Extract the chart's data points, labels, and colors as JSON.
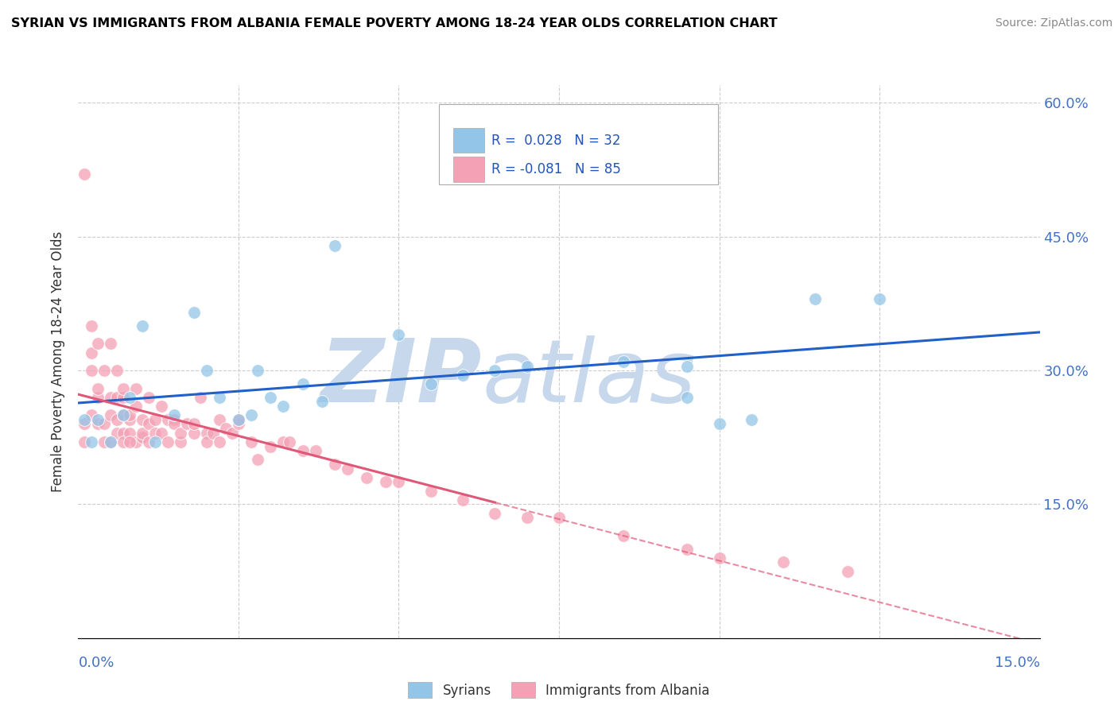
{
  "title": "SYRIAN VS IMMIGRANTS FROM ALBANIA FEMALE POVERTY AMONG 18-24 YEAR OLDS CORRELATION CHART",
  "source": "Source: ZipAtlas.com",
  "ylabel": "Female Poverty Among 18-24 Year Olds",
  "y_ticks": [
    0.0,
    0.15,
    0.3,
    0.45,
    0.6
  ],
  "y_tick_labels": [
    "",
    "15.0%",
    "30.0%",
    "45.0%",
    "60.0%"
  ],
  "syrians_R": 0.028,
  "syrians_N": 32,
  "albania_R": -0.081,
  "albania_N": 85,
  "legend_label_syrians": "Syrians",
  "legend_label_albania": "Immigrants from Albania",
  "color_syrians": "#92C5E8",
  "color_albania": "#F4A0B5",
  "color_trendline_syrians": "#2060C8",
  "color_trendline_albania": "#E05878",
  "watermark_color": "#C8D8EC",
  "syrians_x": [
    0.001,
    0.002,
    0.003,
    0.005,
    0.007,
    0.008,
    0.01,
    0.012,
    0.015,
    0.018,
    0.02,
    0.022,
    0.025,
    0.027,
    0.028,
    0.03,
    0.032,
    0.035,
    0.038,
    0.04,
    0.05,
    0.055,
    0.06,
    0.065,
    0.07,
    0.085,
    0.095,
    0.1,
    0.105,
    0.115,
    0.125,
    0.095
  ],
  "syrians_y": [
    0.245,
    0.22,
    0.245,
    0.22,
    0.25,
    0.27,
    0.35,
    0.22,
    0.25,
    0.365,
    0.3,
    0.27,
    0.245,
    0.25,
    0.3,
    0.27,
    0.26,
    0.285,
    0.265,
    0.44,
    0.34,
    0.285,
    0.295,
    0.3,
    0.305,
    0.31,
    0.305,
    0.24,
    0.245,
    0.38,
    0.38,
    0.27
  ],
  "albania_x": [
    0.001,
    0.001,
    0.002,
    0.002,
    0.003,
    0.003,
    0.003,
    0.004,
    0.004,
    0.005,
    0.005,
    0.005,
    0.006,
    0.006,
    0.006,
    0.007,
    0.007,
    0.007,
    0.007,
    0.008,
    0.008,
    0.008,
    0.009,
    0.009,
    0.009,
    0.01,
    0.01,
    0.01,
    0.011,
    0.011,
    0.011,
    0.012,
    0.012,
    0.013,
    0.013,
    0.014,
    0.014,
    0.015,
    0.015,
    0.016,
    0.016,
    0.017,
    0.018,
    0.018,
    0.019,
    0.02,
    0.02,
    0.021,
    0.022,
    0.022,
    0.023,
    0.024,
    0.025,
    0.025,
    0.027,
    0.028,
    0.03,
    0.032,
    0.033,
    0.035,
    0.037,
    0.04,
    0.042,
    0.045,
    0.048,
    0.05,
    0.055,
    0.06,
    0.065,
    0.07,
    0.075,
    0.085,
    0.095,
    0.1,
    0.11,
    0.12,
    0.001,
    0.002,
    0.002,
    0.003,
    0.004,
    0.005,
    0.006,
    0.007,
    0.008
  ],
  "albania_y": [
    0.24,
    0.22,
    0.3,
    0.25,
    0.27,
    0.24,
    0.28,
    0.24,
    0.22,
    0.27,
    0.25,
    0.22,
    0.245,
    0.23,
    0.27,
    0.25,
    0.23,
    0.22,
    0.27,
    0.245,
    0.23,
    0.25,
    0.26,
    0.22,
    0.28,
    0.245,
    0.225,
    0.23,
    0.24,
    0.22,
    0.27,
    0.245,
    0.23,
    0.26,
    0.23,
    0.245,
    0.22,
    0.245,
    0.24,
    0.22,
    0.23,
    0.24,
    0.23,
    0.24,
    0.27,
    0.23,
    0.22,
    0.23,
    0.245,
    0.22,
    0.235,
    0.23,
    0.24,
    0.245,
    0.22,
    0.2,
    0.215,
    0.22,
    0.22,
    0.21,
    0.21,
    0.195,
    0.19,
    0.18,
    0.175,
    0.175,
    0.165,
    0.155,
    0.14,
    0.135,
    0.135,
    0.115,
    0.1,
    0.09,
    0.085,
    0.075,
    0.52,
    0.35,
    0.32,
    0.33,
    0.3,
    0.33,
    0.3,
    0.28,
    0.22
  ]
}
